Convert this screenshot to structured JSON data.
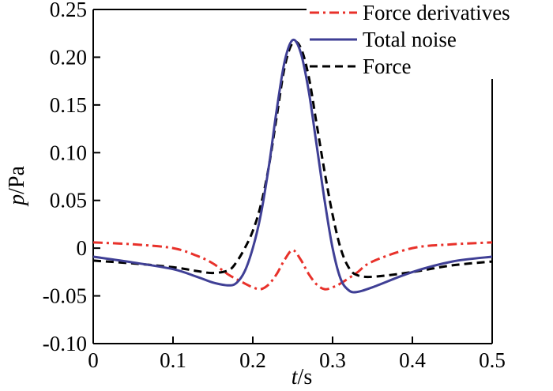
{
  "chart_data": {
    "type": "line",
    "xlabel": {
      "var": "t",
      "unit": "/s"
    },
    "ylabel": {
      "var": "p",
      "unit": "/Pa"
    },
    "xlim": [
      0,
      0.5
    ],
    "ylim": [
      -0.1,
      0.25
    ],
    "xticks": [
      0,
      0.1,
      0.2,
      0.3,
      0.4,
      0.5
    ],
    "xtick_labels": [
      "0",
      "0.1",
      "0.2",
      "0.3",
      "0.4",
      "0.5"
    ],
    "yticks": [
      -0.1,
      -0.05,
      0,
      0.05,
      0.1,
      0.15,
      0.2,
      0.25
    ],
    "ytick_labels": [
      "-0.10",
      "-0.05",
      "0",
      "0.05",
      "0.10",
      "0.15",
      "0.20",
      "0.25"
    ],
    "grid": false,
    "legend_position": "top-right",
    "series": [
      {
        "name": "Force derivatives",
        "color": "#e8312a",
        "dash": "dashdot",
        "x": [
          0,
          0.05,
          0.1,
          0.13,
          0.15,
          0.17,
          0.19,
          0.2,
          0.21,
          0.22,
          0.23,
          0.24,
          0.25,
          0.26,
          0.27,
          0.28,
          0.29,
          0.3,
          0.31,
          0.33,
          0.35,
          0.4,
          0.45,
          0.5
        ],
        "y": [
          0.006,
          0.004,
          0.0,
          -0.008,
          -0.016,
          -0.028,
          -0.037,
          -0.041,
          -0.043,
          -0.038,
          -0.027,
          -0.012,
          -0.002,
          -0.012,
          -0.027,
          -0.038,
          -0.043,
          -0.041,
          -0.037,
          -0.026,
          -0.014,
          0.0,
          0.004,
          0.006
        ]
      },
      {
        "name": "Total noise",
        "color": "#3f3f95",
        "dash": "solid",
        "x": [
          0,
          0.05,
          0.1,
          0.13,
          0.15,
          0.17,
          0.18,
          0.19,
          0.2,
          0.21,
          0.22,
          0.23,
          0.24,
          0.25,
          0.26,
          0.27,
          0.28,
          0.29,
          0.3,
          0.31,
          0.32,
          0.33,
          0.35,
          0.4,
          0.45,
          0.5
        ],
        "y": [
          -0.009,
          -0.015,
          -0.022,
          -0.03,
          -0.036,
          -0.039,
          -0.036,
          -0.024,
          0.0,
          0.035,
          0.085,
          0.145,
          0.196,
          0.218,
          0.205,
          0.165,
          0.108,
          0.05,
          0.0,
          -0.032,
          -0.044,
          -0.046,
          -0.041,
          -0.025,
          -0.014,
          -0.009
        ]
      },
      {
        "name": "Force",
        "color": "#000000",
        "dash": "dashed",
        "x": [
          0,
          0.05,
          0.1,
          0.13,
          0.15,
          0.17,
          0.18,
          0.19,
          0.2,
          0.21,
          0.22,
          0.23,
          0.24,
          0.25,
          0.26,
          0.27,
          0.28,
          0.29,
          0.3,
          0.31,
          0.32,
          0.33,
          0.35,
          0.4,
          0.45,
          0.5
        ],
        "y": [
          -0.013,
          -0.016,
          -0.02,
          -0.024,
          -0.026,
          -0.023,
          -0.014,
          0.0,
          0.018,
          0.045,
          0.085,
          0.138,
          0.19,
          0.215,
          0.21,
          0.18,
          0.13,
          0.08,
          0.035,
          0.0,
          -0.02,
          -0.028,
          -0.03,
          -0.025,
          -0.018,
          -0.014
        ]
      }
    ]
  }
}
